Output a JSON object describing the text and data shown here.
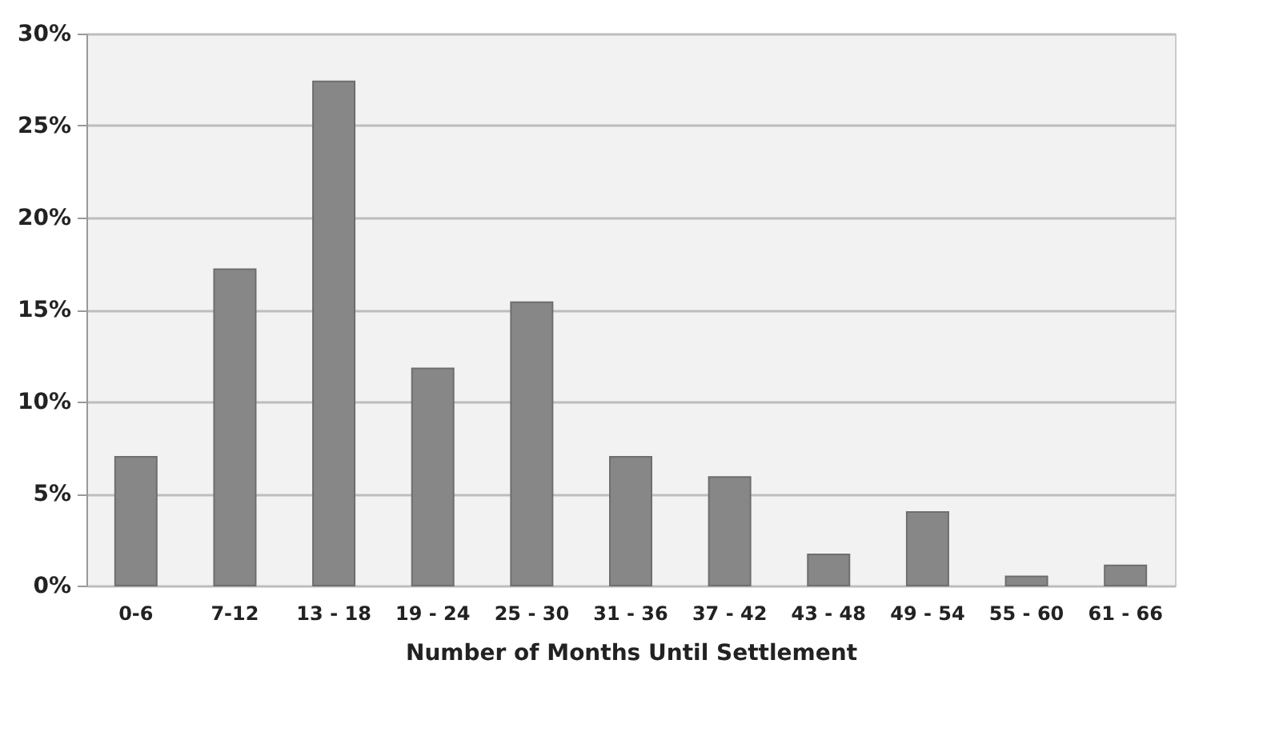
{
  "chart_data": {
    "type": "bar",
    "xlabel": "Number of Months Until Settlement",
    "categories": [
      "0-6",
      "7-12",
      "13 - 18",
      "19 - 24",
      "25 - 30",
      "31 - 36",
      "37 - 42",
      "43 - 48",
      "49 - 54",
      "55 - 60",
      "61 - 66"
    ],
    "values": [
      7.0,
      17.2,
      27.4,
      11.8,
      15.4,
      7.0,
      5.9,
      1.7,
      4.0,
      0.5,
      1.1
    ],
    "color": "#878787",
    "ylim": [
      0,
      30
    ],
    "yticks": [
      {
        "value": 0,
        "label": "0%"
      },
      {
        "value": 5,
        "label": "5%"
      },
      {
        "value": 10,
        "label": "10%"
      },
      {
        "value": 15,
        "label": "15%"
      },
      {
        "value": 20,
        "label": "20%"
      },
      {
        "value": 25,
        "label": "25%"
      },
      {
        "value": 30,
        "label": "30%"
      }
    ],
    "grid": "y"
  }
}
